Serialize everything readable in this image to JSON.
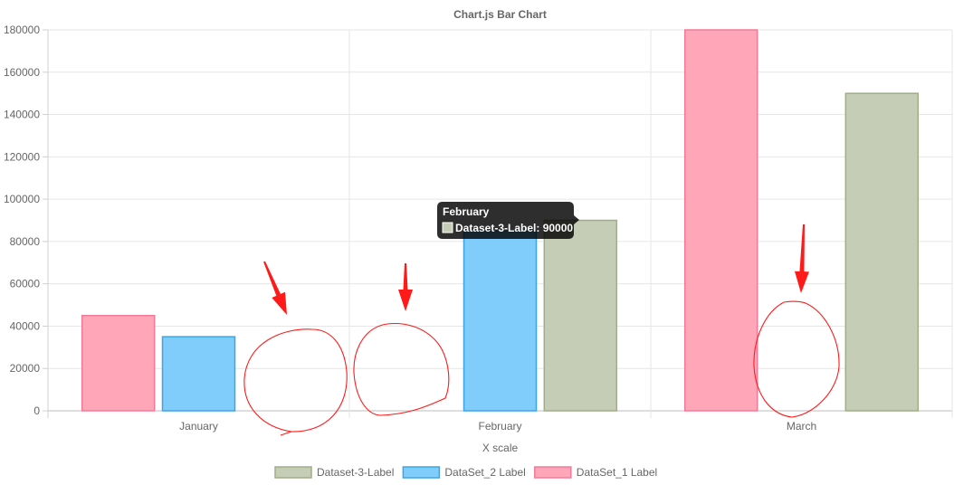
{
  "chart_data": {
    "type": "bar",
    "title": "Chart.js Bar Chart",
    "xlabel": "X scale",
    "ylabel": "",
    "categories": [
      "January",
      "February",
      "March"
    ],
    "ylim": [
      0,
      180000
    ],
    "yticks": [
      0,
      20000,
      40000,
      60000,
      80000,
      100000,
      120000,
      140000,
      160000,
      180000
    ],
    "grid": true,
    "legend_position": "bottom",
    "series": [
      {
        "name": "DataSet_1 Label",
        "values": [
          45000,
          null,
          180000
        ],
        "fill": "#ffa6b8",
        "stroke": "#f27a98"
      },
      {
        "name": "DataSet_2 Label",
        "values": [
          35000,
          85000,
          null
        ],
        "fill": "#80cdfb",
        "stroke": "#3aa6e6"
      },
      {
        "name": "Dataset-3-Label",
        "values": [
          null,
          90000,
          150000
        ],
        "fill": "#c5cdb6",
        "stroke": "#9fae86"
      }
    ],
    "legend_order": [
      "Dataset-3-Label",
      "DataSet_2 Label",
      "DataSet_1 Label"
    ],
    "tooltip": {
      "title": "February",
      "label": "Dataset-3-Label: 90000",
      "swatch_color": "#c5cdb6"
    },
    "annotation_color": "#ff1a1a"
  }
}
